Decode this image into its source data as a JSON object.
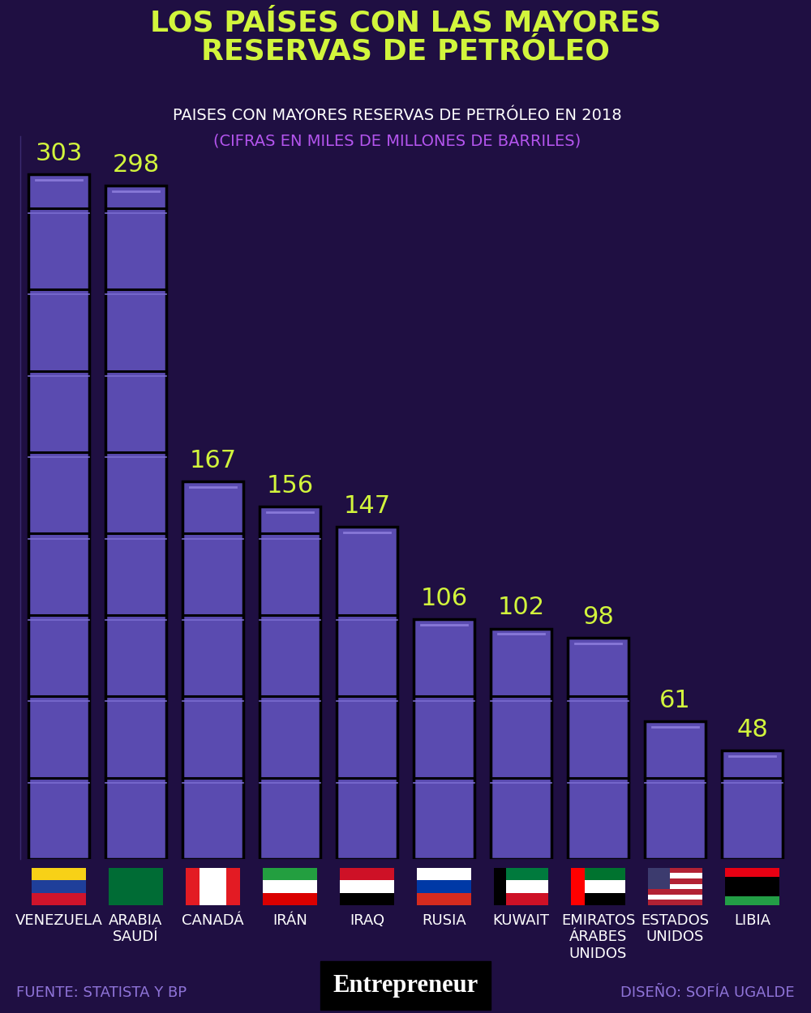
{
  "chart_data": {
    "type": "bar",
    "title": "LOS PAÍSES CON LAS MAYORES\nRESERVAS DE PETRÓLEO",
    "subtitle": "PAISES CON MAYORES RESERVAS DE PETRÓLEO EN 2018",
    "annotations": [
      "(CIFRAS EN MILES DE MILLONES DE BARRILES)",
      "FUENTE: STATISTA Y BP",
      "Entrepreneur",
      "DISEÑO: SOFÍA UGALDE"
    ],
    "categories": [
      "VENEZUELA",
      "ARABIA\nSAUDÍ",
      "CANADÁ",
      "IRÁN",
      "IRAQ",
      "RUSIA",
      "KUWAIT",
      "EMIRATOS\nÁRABES\nUNIDOS",
      "ESTADOS\nUNIDOS",
      "LIBIA"
    ],
    "values": [
      303,
      298,
      167,
      156,
      147,
      106,
      102,
      98,
      61,
      48
    ],
    "color": "#5a4bb0",
    "ylim": [
      0,
      320
    ],
    "data_labels": true,
    "tick_labels": "x"
  }
}
